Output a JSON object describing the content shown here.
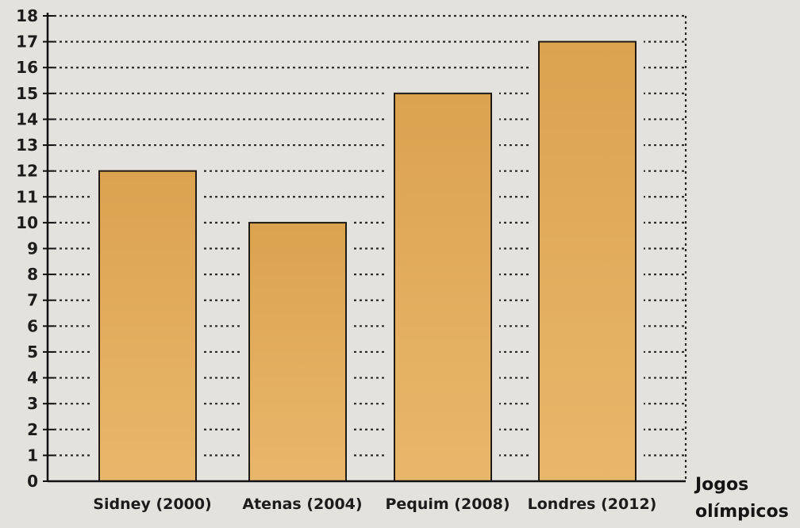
{
  "chart_data": {
    "type": "bar",
    "categories": [
      "Sidney (2000)",
      "Atenas (2004)",
      "Pequim (2008)",
      "Londres (2012)"
    ],
    "values": [
      12,
      10,
      15,
      17
    ],
    "title": "",
    "xlabel": "Jogos olímpicos",
    "xlabel_lines": [
      "Jogos",
      "olímpicos"
    ],
    "ylabel": "",
    "ylim": [
      0,
      18
    ],
    "yticks": [
      "0",
      "1",
      "2",
      "3",
      "4",
      "5",
      "6",
      "7",
      "8",
      "9",
      "10",
      "11",
      "12",
      "13",
      "14",
      "15",
      "16",
      "17",
      "18"
    ],
    "grid": true,
    "legend": "none",
    "colors": {
      "bar_fill": "#e3ad5c",
      "bar_stroke": "#1f1a14",
      "grid": "#2a2a2a",
      "axis": "#111111",
      "background": "#e4e2de"
    }
  }
}
